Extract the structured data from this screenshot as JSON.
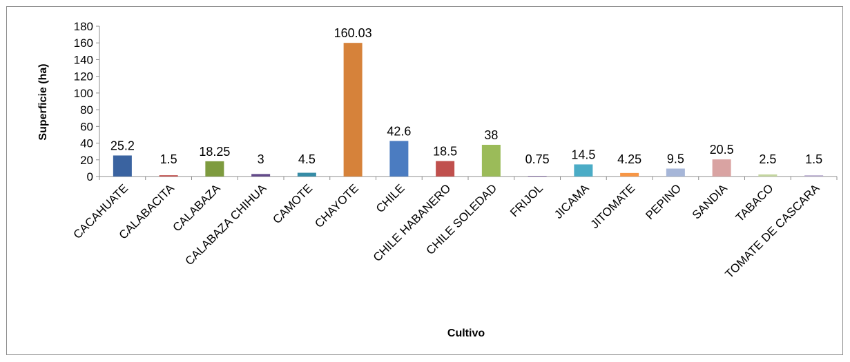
{
  "chart_data": {
    "type": "bar",
    "title": "",
    "xlabel": "Cultivo",
    "ylabel": "Superficie (ha)",
    "ylim": [
      0,
      180
    ],
    "yticks": [
      0,
      20,
      40,
      60,
      80,
      100,
      120,
      140,
      160,
      180
    ],
    "grid": false,
    "legend": "none",
    "categories": [
      "CACAHUATE",
      "CALABACITA",
      "CALABAZA",
      "CALABAZA CHIHUA",
      "CAMOTE",
      "CHAYOTE",
      "CHILE",
      "CHILE HABANERO",
      "CHILE SOLEDAD",
      "FRIJOL",
      "JICAMA",
      "JITOMATE",
      "PEPINO",
      "SANDIA",
      "TABACO",
      "TOMATE DE CASCARA"
    ],
    "values": [
      25.2,
      1.5,
      18.25,
      3,
      4.5,
      160.03,
      42.6,
      18.5,
      38,
      0.75,
      14.5,
      4.25,
      9.5,
      20.5,
      2.5,
      1.5
    ],
    "data_labels": [
      "25.2",
      "1.5",
      "18.25",
      "3",
      "4.5",
      "160.03",
      "42.6",
      "18.5",
      "38",
      "0.75",
      "14.5",
      "4.25",
      "9.5",
      "20.5",
      "2.5",
      "1.5"
    ],
    "colors": [
      "#3a63a0",
      "#be4b48",
      "#7e9b3f",
      "#634a8a",
      "#368ca6",
      "#d6823a",
      "#4b7cc1",
      "#c0504d",
      "#9bbb59",
      "#8064a2",
      "#4bacc6",
      "#f79646",
      "#a6b6d8",
      "#d9a3a2",
      "#c4d6a0",
      "#b9aed0"
    ]
  }
}
